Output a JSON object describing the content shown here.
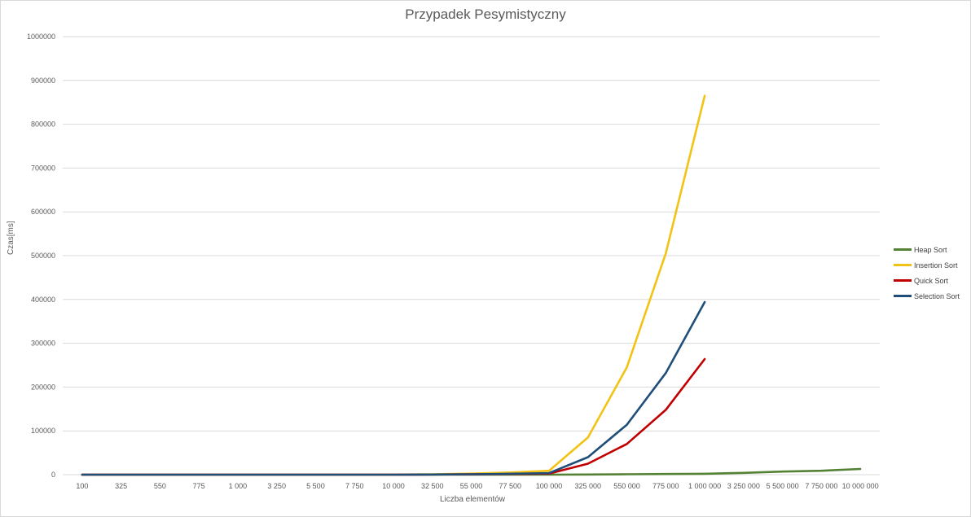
{
  "chart_data": {
    "type": "line",
    "title": "Przypadek Pesymistyczny",
    "xlabel": "Liczba elementów",
    "ylabel": "Czas[ms]",
    "ylim": [
      0,
      1000000
    ],
    "yticks": [
      "0",
      "100000",
      "200000",
      "300000",
      "400000",
      "500000",
      "600000",
      "700000",
      "800000",
      "900000",
      "1000000"
    ],
    "grid": true,
    "legend_position": "right",
    "categories": [
      "100",
      "325",
      "550",
      "775",
      "1 000",
      "3 250",
      "5 500",
      "7 750",
      "10 000",
      "32 500",
      "55 000",
      "77 500",
      "100 000",
      "325 000",
      "550 000",
      "775 000",
      "1 000 000",
      "3 250 000",
      "5 500 000",
      "7 750 000",
      "10 000 000"
    ],
    "series": [
      {
        "name": "Heap Sort",
        "color": "#548235",
        "values": [
          0,
          0,
          0,
          0,
          0,
          0,
          0,
          0,
          0,
          5,
          10,
          15,
          20,
          300,
          1000,
          1500,
          2000,
          4000,
          7000,
          9000,
          13000
        ]
      },
      {
        "name": "Insertion Sort",
        "color": "#f2c314",
        "values": [
          0,
          0,
          0,
          0,
          0,
          0,
          0,
          0,
          100,
          1000,
          2500,
          5000,
          9000,
          85000,
          245000,
          505000,
          865000,
          null,
          null,
          null,
          null
        ]
      },
      {
        "name": "Quick Sort",
        "color": "#c00000",
        "values": [
          0,
          0,
          0,
          0,
          0,
          0,
          0,
          0,
          50,
          300,
          800,
          1500,
          2500,
          25000,
          70000,
          148000,
          264000,
          null,
          null,
          null,
          null
        ]
      },
      {
        "name": "Selection Sort",
        "color": "#1f4e79",
        "values": [
          0,
          0,
          0,
          0,
          0,
          0,
          0,
          0,
          50,
          400,
          1000,
          2000,
          3500,
          40000,
          114000,
          232000,
          394000,
          null,
          null,
          null,
          null
        ]
      }
    ]
  }
}
